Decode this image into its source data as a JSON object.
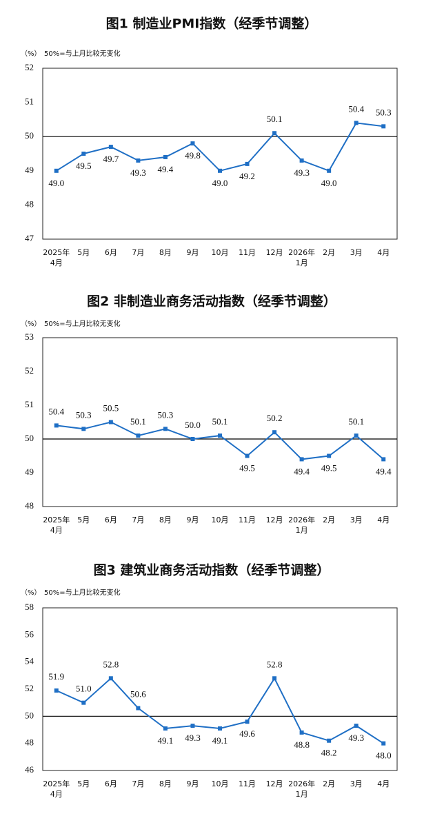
{
  "chart_data": [
    {
      "type": "line",
      "title": "图1  制造业PMI指数（经季节调整）",
      "unit": "（%）",
      "note": "50%=与上月比较无变化",
      "categories": [
        "2025年\n4月",
        "5月",
        "6月",
        "7月",
        "8月",
        "9月",
        "10月",
        "11月",
        "12月",
        "2026年\n1月",
        "2月",
        "3月",
        "4月"
      ],
      "series": [
        {
          "color": "#1f6fc5",
          "values": [
            49.0,
            49.5,
            49.7,
            49.3,
            49.4,
            49.8,
            49.0,
            49.2,
            50.1,
            49.3,
            49.0,
            50.4,
            50.3
          ],
          "value_labels": [
            "49.0",
            "49.5",
            "49.7",
            "49.3",
            "49.4",
            "49.8",
            "49.0",
            "49.2",
            "50.1",
            "49.3",
            "49.0",
            "50.4",
            "50.3"
          ]
        }
      ],
      "ylim": [
        47,
        52
      ],
      "yticks": [
        47,
        48,
        49,
        50,
        51,
        52
      ],
      "reference": 50
    },
    {
      "type": "line",
      "title": "图2  非制造业商务活动指数（经季节调整）",
      "unit": "（%）",
      "note": "50%=与上月比较无变化",
      "categories": [
        "2025年\n4月",
        "5月",
        "6月",
        "7月",
        "8月",
        "9月",
        "10月",
        "11月",
        "12月",
        "2026年\n1月",
        "2月",
        "3月",
        "4月"
      ],
      "series": [
        {
          "color": "#1f6fc5",
          "values": [
            50.4,
            50.3,
            50.5,
            50.1,
            50.3,
            50.0,
            50.1,
            49.5,
            50.2,
            49.4,
            49.5,
            50.1,
            49.4
          ],
          "value_labels": [
            "50.4",
            "50.3",
            "50.5",
            "50.1",
            "50.3",
            "50.0",
            "50.1",
            "49.5",
            "50.2",
            "49.4",
            "49.5",
            "50.1",
            "49.4"
          ]
        }
      ],
      "ylim": [
        48,
        53
      ],
      "yticks": [
        48,
        49,
        50,
        51,
        52,
        53
      ],
      "reference": 50
    },
    {
      "type": "line",
      "title": "图3  建筑业商务活动指数（经季节调整）",
      "unit": "（%）",
      "note": "50%=与上月比较无变化",
      "categories": [
        "2025年\n4月",
        "5月",
        "6月",
        "7月",
        "8月",
        "9月",
        "10月",
        "11月",
        "12月",
        "2026年\n1月",
        "2月",
        "3月",
        "4月"
      ],
      "series": [
        {
          "color": "#1f6fc5",
          "values": [
            51.9,
            51.0,
            52.8,
            50.6,
            49.1,
            49.3,
            49.1,
            49.6,
            52.8,
            48.8,
            48.2,
            49.3,
            48.0
          ],
          "value_labels": [
            "51.9",
            "51.0",
            "52.8",
            "50.6",
            "49.1",
            "49.3",
            "49.1",
            "49.6",
            "52.8",
            "48.8",
            "48.2",
            "49.3",
            "48.0"
          ]
        }
      ],
      "ylim": [
        46,
        58
      ],
      "yticks": [
        46,
        48,
        50,
        52,
        54,
        56,
        58
      ],
      "reference": 50
    }
  ]
}
